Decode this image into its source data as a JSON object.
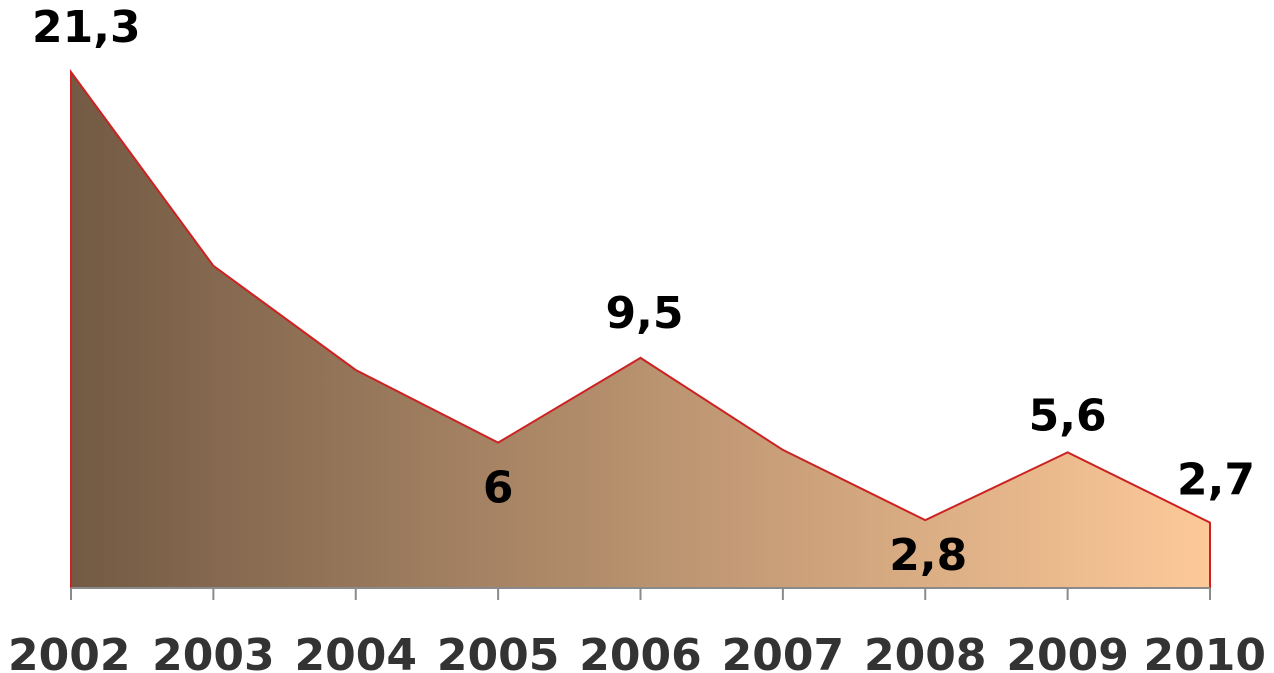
{
  "chart_data": {
    "type": "area",
    "categories": [
      "2002",
      "2003",
      "2004",
      "2005",
      "2006",
      "2007",
      "2008",
      "2009",
      "2010"
    ],
    "values": [
      21.3,
      13.3,
      9.0,
      6.0,
      9.5,
      5.7,
      2.8,
      5.6,
      2.7
    ],
    "data_labels": [
      {
        "index": 0,
        "text": "21,3"
      },
      {
        "index": 3,
        "text": "6"
      },
      {
        "index": 4,
        "text": "9,5"
      },
      {
        "index": 6,
        "text": "2,8"
      },
      {
        "index": 7,
        "text": "5,6"
      },
      {
        "index": 8,
        "text": "2,7"
      }
    ],
    "title": "",
    "xlabel": "",
    "ylabel": "",
    "ylim": [
      0,
      21.3
    ],
    "grid": false,
    "colors": {
      "fill_start": "#735a44",
      "fill_end": "#fdc999",
      "line": "#cc2222",
      "axis": "#8a8a8a"
    }
  }
}
